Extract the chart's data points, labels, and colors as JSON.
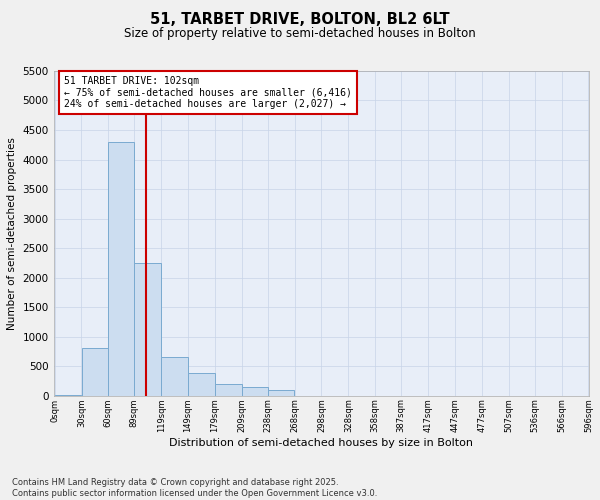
{
  "title": "51, TARBET DRIVE, BOLTON, BL2 6LT",
  "subtitle": "Size of property relative to semi-detached houses in Bolton",
  "xlabel": "Distribution of semi-detached houses by size in Bolton",
  "ylabel": "Number of semi-detached properties",
  "footer_line1": "Contains HM Land Registry data © Crown copyright and database right 2025.",
  "footer_line2": "Contains public sector information licensed under the Open Government Licence v3.0.",
  "annotation_line1": "51 TARBET DRIVE: 102sqm",
  "annotation_line2": "← 75% of semi-detached houses are smaller (6,416)",
  "annotation_line3": "24% of semi-detached houses are larger (2,027) →",
  "bin_edges": [
    0,
    30,
    60,
    89,
    119,
    149,
    179,
    209,
    238,
    268,
    298,
    328,
    358,
    387,
    417,
    447,
    477,
    507,
    536,
    566,
    596
  ],
  "bar_heights": [
    20,
    800,
    4300,
    2250,
    650,
    380,
    200,
    150,
    100,
    0,
    0,
    0,
    0,
    0,
    0,
    0,
    0,
    0,
    0,
    0
  ],
  "bar_face_color": "#ccddf0",
  "bar_edge_color": "#7aaad0",
  "grid_color": "#c8d4e8",
  "bg_color": "#e8eef8",
  "fig_bg_color": "#f0f0f0",
  "property_line_x": 102,
  "property_line_color": "#cc0000",
  "annotation_box_color": "#cc0000",
  "ylim": [
    0,
    5500
  ],
  "yticks": [
    0,
    500,
    1000,
    1500,
    2000,
    2500,
    3000,
    3500,
    4000,
    4500,
    5000,
    5500
  ],
  "xtick_labels": [
    "0sqm",
    "30sqm",
    "60sqm",
    "89sqm",
    "119sqm",
    "149sqm",
    "179sqm",
    "209sqm",
    "238sqm",
    "268sqm",
    "298sqm",
    "328sqm",
    "358sqm",
    "387sqm",
    "417sqm",
    "447sqm",
    "477sqm",
    "507sqm",
    "536sqm",
    "566sqm",
    "596sqm"
  ]
}
